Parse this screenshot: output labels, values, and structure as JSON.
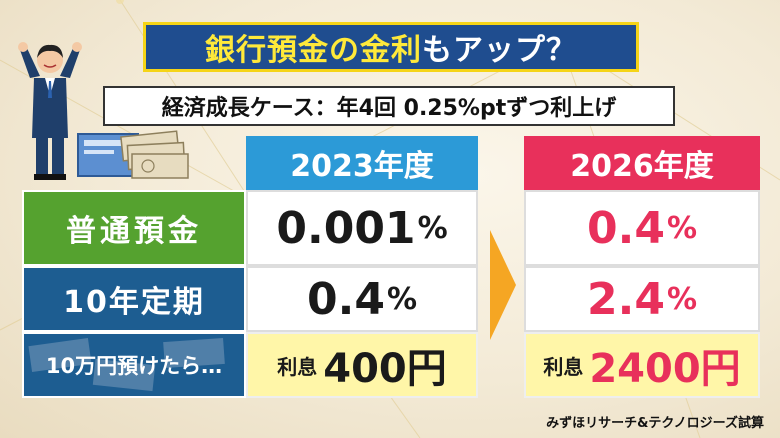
{
  "title": {
    "highlight": "銀行預金の金利",
    "rest": "もアップ？"
  },
  "subtitle": "経済成長ケース：年4回 0.25%ptずつ利上げ",
  "table": {
    "headers": [
      "2023年度",
      "2026年度"
    ],
    "rows": [
      {
        "label": "普通預金",
        "v2023": "0.001",
        "v2026": "0.4",
        "unit": "%"
      },
      {
        "label": "10年定期",
        "v2023": "0.4",
        "v2026": "2.4",
        "unit": "%"
      },
      {
        "label": "10万円預けたら…",
        "interest_label": "利息",
        "v2023": "400円",
        "v2026": "2400円"
      }
    ]
  },
  "source": "みずほリサーチ&テクノロジーズ試算",
  "colors": {
    "title_bg": "#1f4d8f",
    "title_text": "#ffe93a",
    "header_2023": "#2c9ad7",
    "header_2026": "#e8305b",
    "label_green": "#55a22f",
    "label_blue": "#1d5d91",
    "highlight_row": "#fff6a8",
    "arrow": "#f5a623"
  },
  "icons": [
    "businessman-icon",
    "bankbook-icon",
    "banknotes-icon",
    "right-arrow-icon"
  ]
}
